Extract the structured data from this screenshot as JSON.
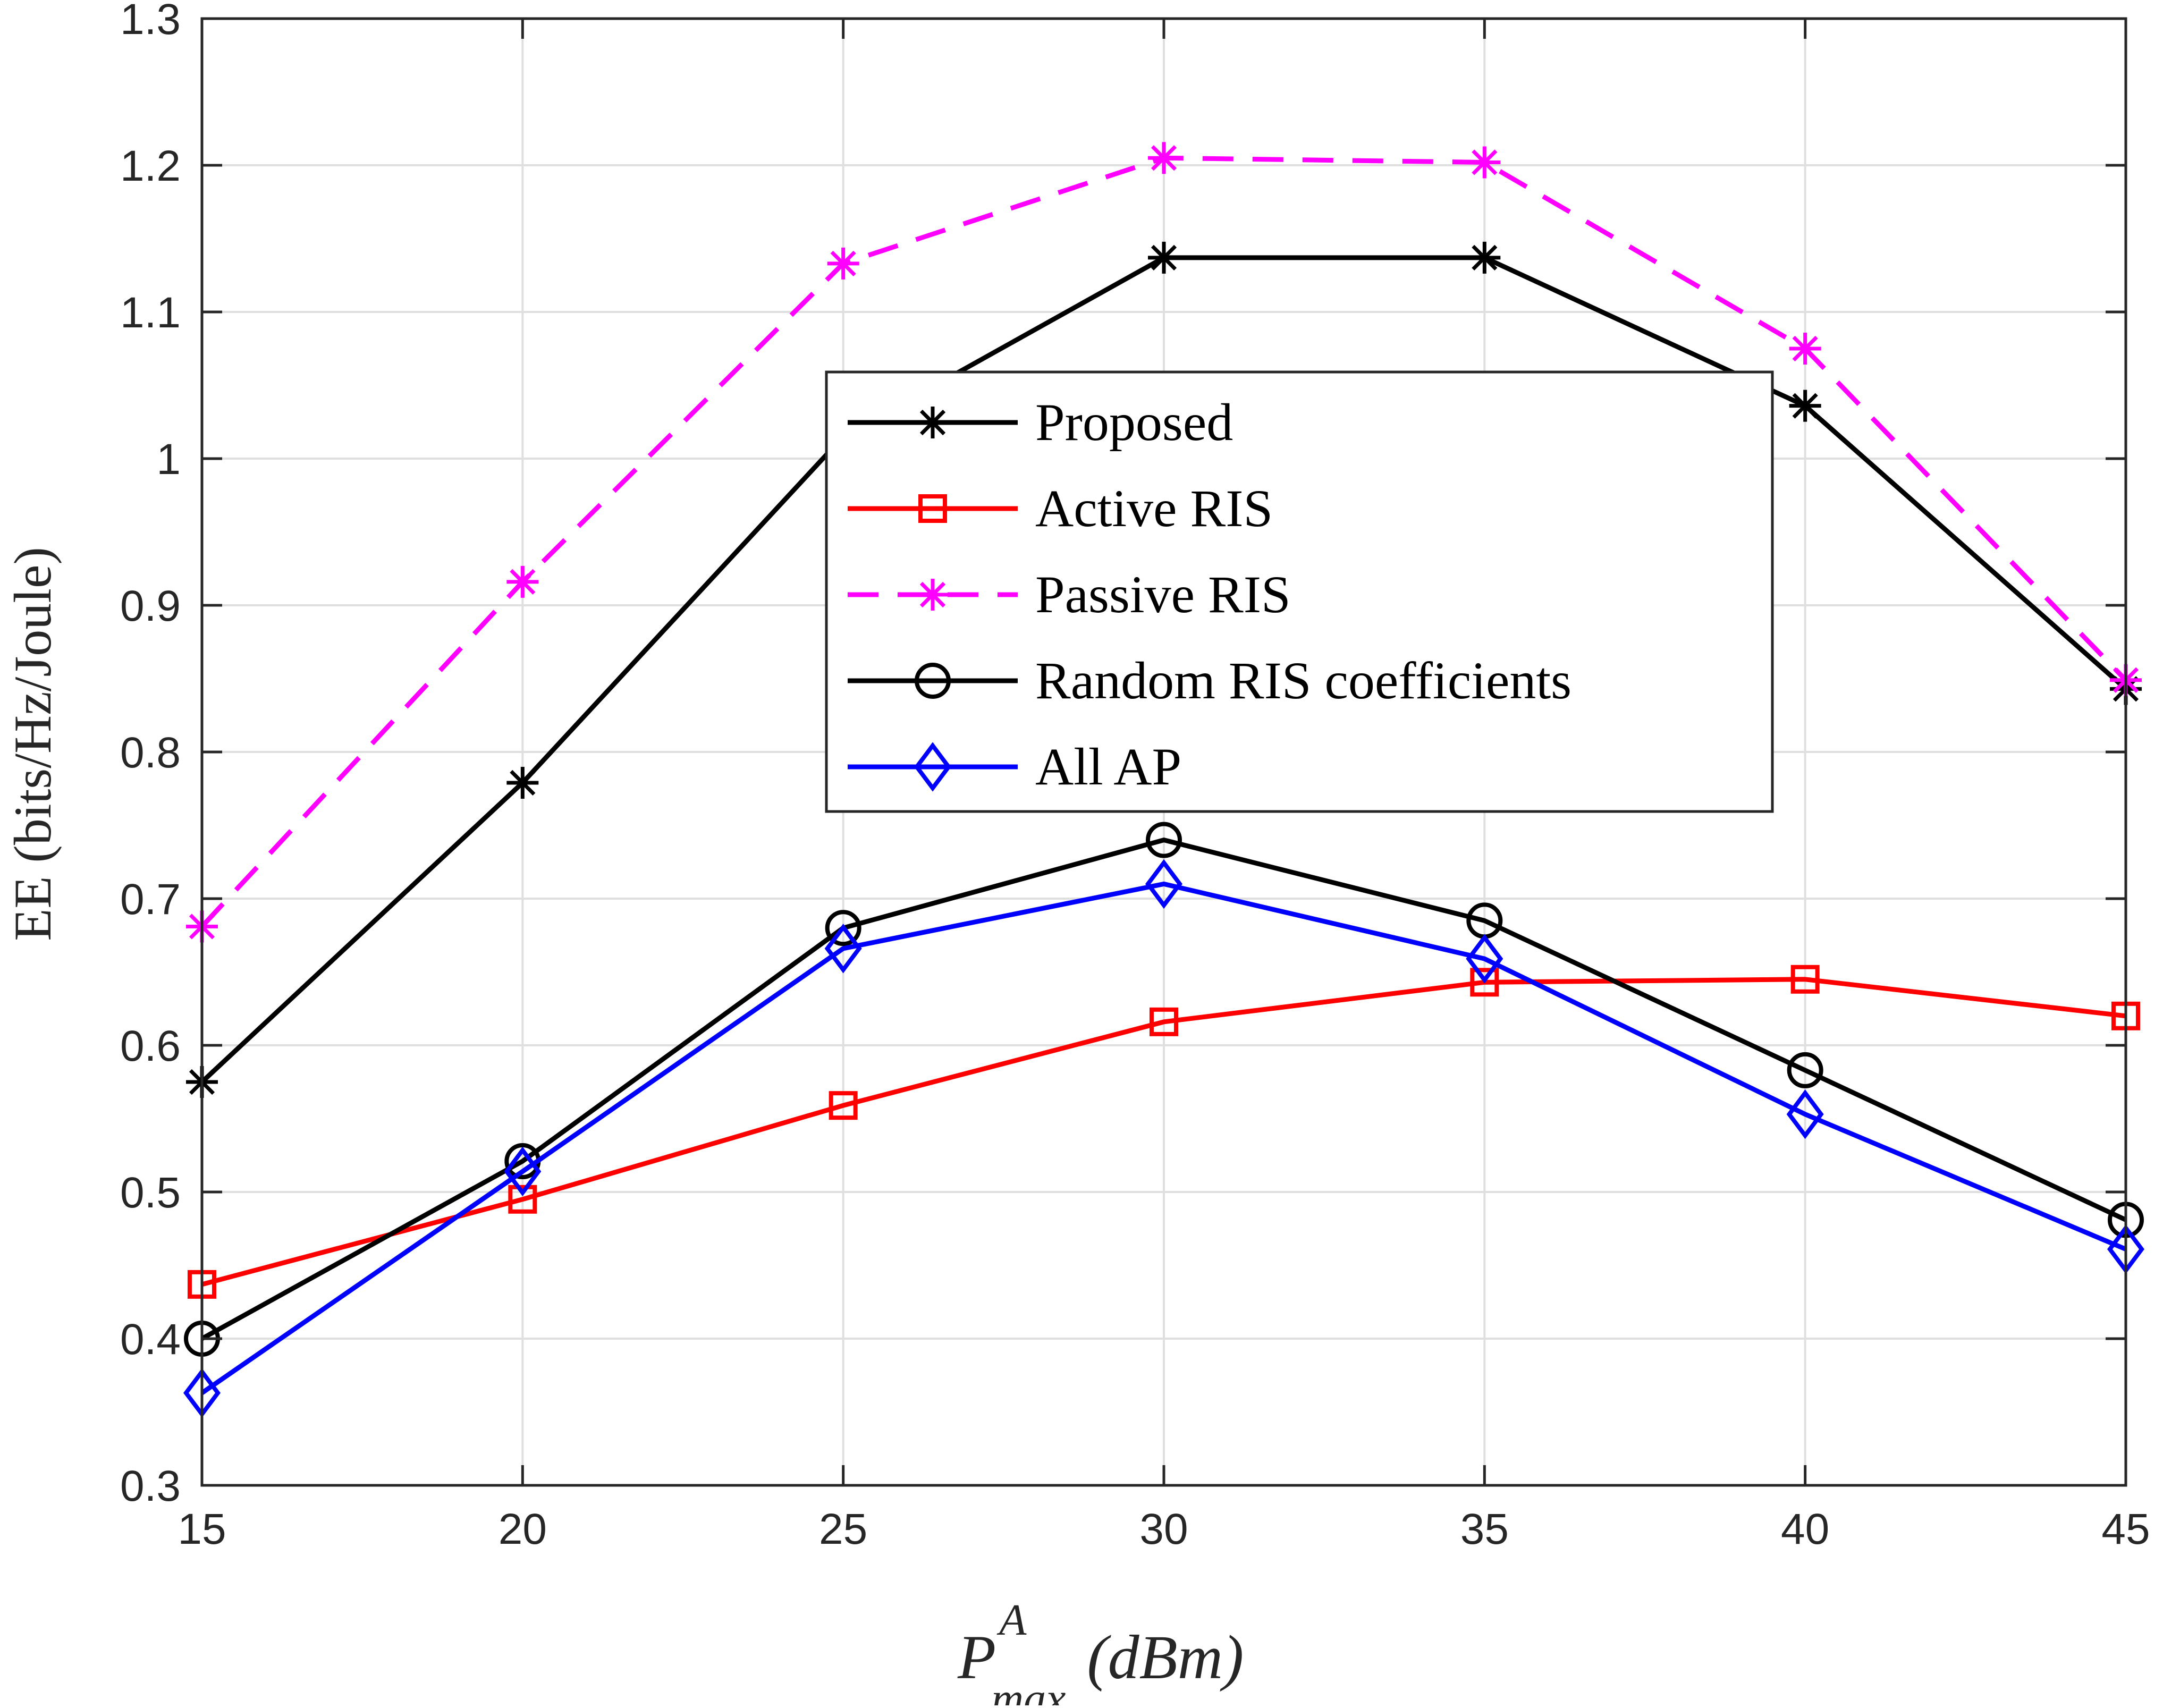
{
  "chart_data": {
    "type": "line",
    "title": "",
    "xlabel": "(dBm)",
    "xlabel_symbol": "P",
    "xlabel_sup": "A",
    "xlabel_sub": "max",
    "ylabel": "EE (bits/Hz/Joule)",
    "x": [
      15,
      20,
      25,
      30,
      35,
      40,
      45
    ],
    "xlim": [
      15,
      45
    ],
    "ylim": [
      0.3,
      1.3
    ],
    "xticks": [
      "15",
      "20",
      "25",
      "30",
      "35",
      "40",
      "45"
    ],
    "yticks": [
      "0.3",
      "0.4",
      "0.5",
      "0.6",
      "0.7",
      "0.8",
      "0.9",
      "1",
      "1.1",
      "1.2",
      "1.3"
    ],
    "grid": true,
    "legend_position": "center",
    "series": [
      {
        "name": "Proposed",
        "color": "#000000",
        "marker": "asterisk",
        "dash": "solid",
        "values": [
          0.575,
          0.779,
          1.015,
          1.137,
          1.137,
          1.036,
          0.843
        ]
      },
      {
        "name": "Active RIS",
        "color": "#ff0000",
        "marker": "square",
        "dash": "solid",
        "values": [
          0.437,
          0.495,
          0.559,
          0.616,
          0.643,
          0.645,
          0.62
        ]
      },
      {
        "name": "Passive RIS",
        "color": "#ff00ff",
        "marker": "asterisk",
        "dash": "dashed",
        "values": [
          0.681,
          0.916,
          1.133,
          1.205,
          1.202,
          1.075,
          0.849
        ]
      },
      {
        "name": "Random RIS coefficients",
        "color": "#000000",
        "marker": "circle",
        "dash": "solid",
        "values": [
          0.4,
          0.521,
          0.68,
          0.74,
          0.685,
          0.583,
          0.481
        ]
      },
      {
        "name": "All AP",
        "color": "#0000ff",
        "marker": "diamond",
        "dash": "solid",
        "values": [
          0.363,
          0.514,
          0.666,
          0.71,
          0.659,
          0.553,
          0.461
        ]
      }
    ]
  }
}
